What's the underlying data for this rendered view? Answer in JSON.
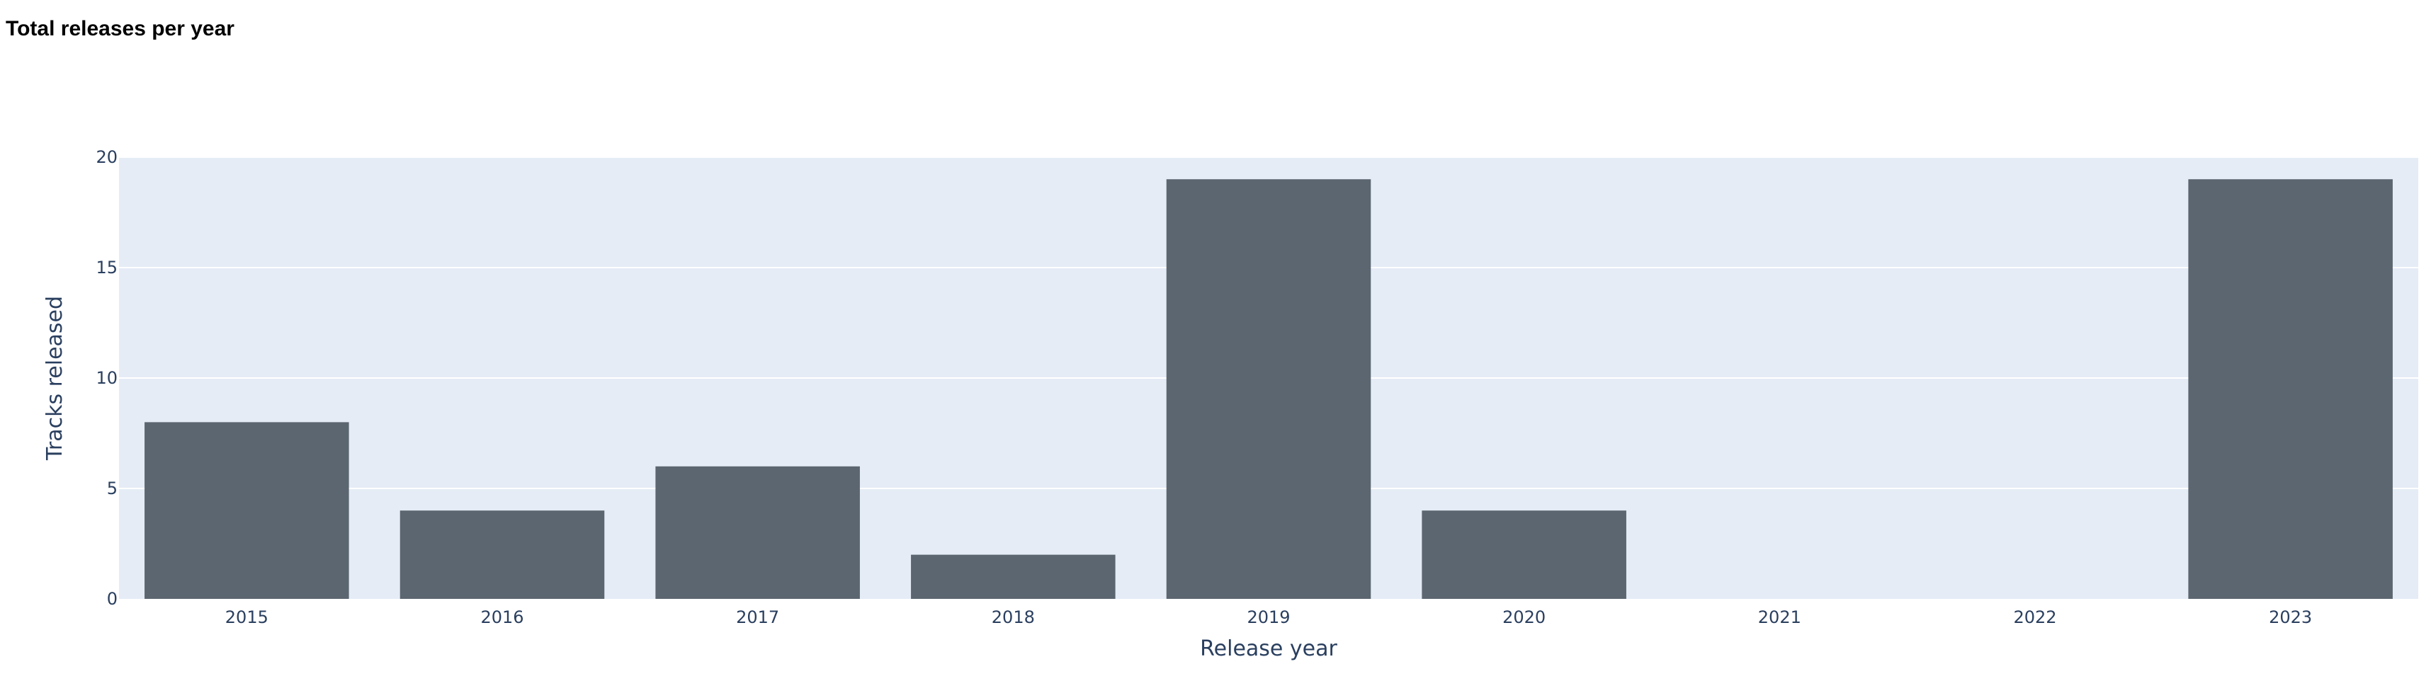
{
  "chart_data": {
    "type": "bar",
    "title": "Total releases per year",
    "xlabel": "Release year",
    "ylabel": "Tracks released",
    "categories": [
      "2015",
      "2016",
      "2017",
      "2018",
      "2019",
      "2020",
      "2021",
      "2022",
      "2023"
    ],
    "values": [
      8,
      4,
      6,
      2,
      19,
      4,
      0,
      0,
      19
    ],
    "ylim": [
      0,
      20
    ],
    "yticks": [
      "0",
      "5",
      "10",
      "15",
      "20"
    ],
    "grid": true,
    "colors": {
      "bar": "#5c6670",
      "plot_background": "#e5ecf6",
      "grid": "#ffffff",
      "text": "#2a3f5f"
    }
  }
}
